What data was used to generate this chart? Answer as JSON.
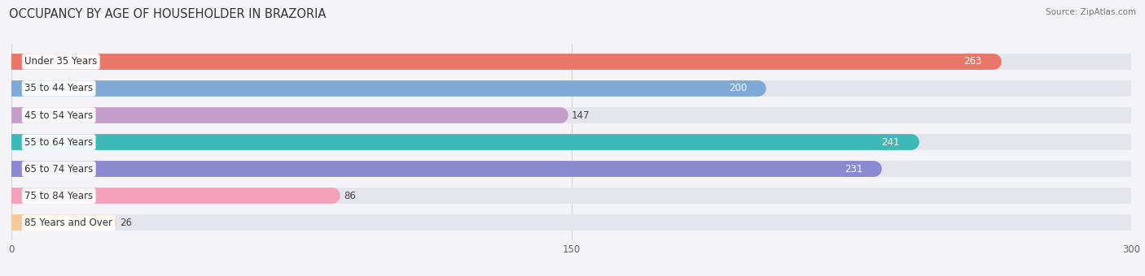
{
  "title": "OCCUPANCY BY AGE OF HOUSEHOLDER IN BRAZORIA",
  "source": "Source: ZipAtlas.com",
  "categories": [
    "Under 35 Years",
    "35 to 44 Years",
    "45 to 54 Years",
    "55 to 64 Years",
    "65 to 74 Years",
    "75 to 84 Years",
    "85 Years and Over"
  ],
  "values": [
    263,
    200,
    147,
    241,
    231,
    86,
    26
  ],
  "bar_colors": [
    "#E8776A",
    "#7FAAD8",
    "#C49DC9",
    "#3DBAB8",
    "#8B89D0",
    "#F4A1B9",
    "#F5CA9A"
  ],
  "bar_bg_color": "#E4E4EC",
  "background_color": "#F4F4F8",
  "xlim_max": 300,
  "xticks": [
    0,
    150,
    300
  ],
  "title_fontsize": 10.5,
  "label_fontsize": 8.5,
  "value_fontsize": 8.5,
  "bar_height": 0.55
}
